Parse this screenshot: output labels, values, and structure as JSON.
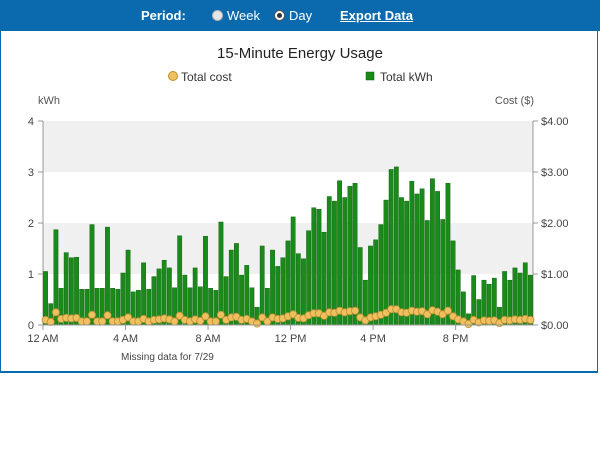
{
  "header": {
    "period_label": "Period:",
    "options": [
      {
        "label": "Week",
        "selected": false
      },
      {
        "label": "Day",
        "selected": true
      }
    ],
    "export_label": "Export Data",
    "bar_color": "#0b6aae"
  },
  "chart_data": {
    "type": "bar",
    "title": "15-Minute Energy Usage",
    "legend": [
      "Total cost",
      "Total kWh"
    ],
    "ylabel_left": "kWh",
    "ylabel_right": "Cost ($)",
    "ylim_left": [
      0,
      4
    ],
    "ylim_right": [
      0,
      4
    ],
    "yticks_left": [
      "0",
      "1",
      "2",
      "3",
      "4"
    ],
    "yticks_right": [
      "$0.00",
      "$1.00",
      "$2.00",
      "$3.00",
      "$4.00"
    ],
    "xticks": [
      {
        "label": "12 AM",
        "index": 0
      },
      {
        "label": "4 AM",
        "index": 16
      },
      {
        "label": "8 AM",
        "index": 32
      },
      {
        "label": "12 PM",
        "index": 48
      },
      {
        "label": "4 PM",
        "index": 64
      },
      {
        "label": "8 PM",
        "index": 80
      }
    ],
    "note": "Missing data for  7/29",
    "bar_color": "#1a8a1a",
    "cost_color": "#f0c060",
    "kwh": [
      1.05,
      0.42,
      1.87,
      0.72,
      1.42,
      1.32,
      1.33,
      0.7,
      0.7,
      1.97,
      0.72,
      0.72,
      1.92,
      0.72,
      0.7,
      1.02,
      1.47,
      0.65,
      0.68,
      1.22,
      0.7,
      0.95,
      1.1,
      1.27,
      1.12,
      0.73,
      1.75,
      0.98,
      0.73,
      1.12,
      0.75,
      1.74,
      0.72,
      0.68,
      2.02,
      0.95,
      1.47,
      1.6,
      0.98,
      1.17,
      0.73,
      0.35,
      1.55,
      0.72,
      1.47,
      1.15,
      1.32,
      1.65,
      2.12,
      1.4,
      1.3,
      1.85,
      2.3,
      2.27,
      1.82,
      2.52,
      2.43,
      2.83,
      2.5,
      2.72,
      2.78,
      1.52,
      0.88,
      1.55,
      1.67,
      1.97,
      2.45,
      3.05,
      3.1,
      2.5,
      2.43,
      2.82,
      2.57,
      2.67,
      2.05,
      2.87,
      2.62,
      2.07,
      2.78,
      1.65,
      1.08,
      0.65,
      0.22,
      0.97,
      0.5,
      0.88,
      0.8,
      0.92,
      0.35,
      1.05,
      0.88,
      1.12,
      1.02,
      1.22,
      0.98
    ],
    "cost": [
      0.1,
      0.06,
      0.25,
      0.12,
      0.14,
      0.13,
      0.14,
      0.07,
      0.07,
      0.2,
      0.07,
      0.07,
      0.19,
      0.07,
      0.07,
      0.1,
      0.15,
      0.07,
      0.07,
      0.12,
      0.07,
      0.1,
      0.11,
      0.13,
      0.11,
      0.07,
      0.18,
      0.1,
      0.07,
      0.11,
      0.08,
      0.17,
      0.07,
      0.07,
      0.2,
      0.1,
      0.15,
      0.16,
      0.1,
      0.12,
      0.07,
      0.03,
      0.15,
      0.07,
      0.15,
      0.12,
      0.13,
      0.17,
      0.21,
      0.14,
      0.13,
      0.19,
      0.23,
      0.23,
      0.18,
      0.25,
      0.24,
      0.28,
      0.25,
      0.27,
      0.28,
      0.15,
      0.09,
      0.15,
      0.17,
      0.2,
      0.24,
      0.31,
      0.31,
      0.25,
      0.24,
      0.28,
      0.26,
      0.27,
      0.21,
      0.29,
      0.26,
      0.21,
      0.28,
      0.17,
      0.11,
      0.07,
      0.02,
      0.1,
      0.05,
      0.09,
      0.08,
      0.09,
      0.04,
      0.1,
      0.09,
      0.11,
      0.1,
      0.12,
      0.1
    ]
  }
}
